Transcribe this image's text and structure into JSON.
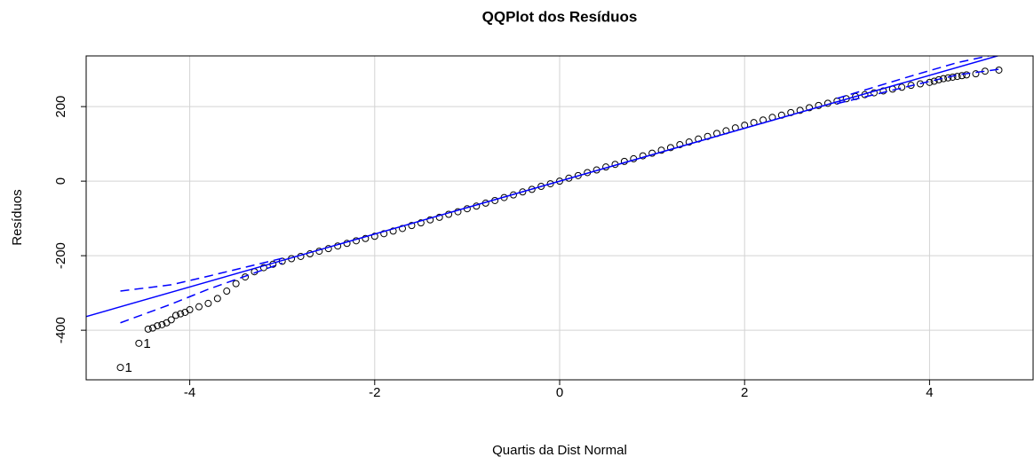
{
  "chart_data": {
    "type": "scatter",
    "title": "QQPlot dos Resíduos",
    "xlabel": "Quartis da Dist Normal",
    "ylabel": "Resíduos",
    "xlim": [
      -5.12,
      5.12
    ],
    "ylim": [
      -533,
      336
    ],
    "xticks": [
      -4,
      -2,
      0,
      2,
      4
    ],
    "yticks": [
      -400,
      -200,
      0,
      200
    ],
    "grid": true,
    "series": [
      {
        "style": "points",
        "color": "#000000",
        "x": [
          -4.75,
          -4.55,
          -4.45,
          -4.4,
          -4.35,
          -4.3,
          -4.25,
          -4.2,
          -4.15,
          -4.1,
          -4.05,
          -4.0,
          -3.9,
          -3.8,
          -3.7,
          -3.6,
          -3.5,
          -3.4,
          -3.3,
          -3.2,
          -3.1,
          -3.0,
          -2.9,
          -2.8,
          -2.7,
          -2.6,
          -2.5,
          -2.4,
          -2.3,
          -2.2,
          -2.1,
          -2.0,
          -1.9,
          -1.8,
          -1.7,
          -1.6,
          -1.5,
          -1.4,
          -1.3,
          -1.2,
          -1.1,
          -1.0,
          -0.9,
          -0.8,
          -0.7,
          -0.6,
          -0.5,
          -0.4,
          -0.3,
          -0.2,
          -0.1,
          0,
          0.1,
          0.2,
          0.3,
          0.4,
          0.5,
          0.6,
          0.7,
          0.8,
          0.9,
          1.0,
          1.1,
          1.2,
          1.3,
          1.4,
          1.5,
          1.6,
          1.7,
          1.8,
          1.9,
          2.0,
          2.1,
          2.2,
          2.3,
          2.4,
          2.5,
          2.6,
          2.7,
          2.8,
          2.9,
          3.0,
          3.1,
          3.2,
          3.3,
          3.4,
          3.5,
          3.6,
          3.7,
          3.8,
          3.9,
          4.0,
          4.05,
          4.1,
          4.15,
          4.2,
          4.25,
          4.3,
          4.35,
          4.4,
          4.5,
          4.6,
          4.75
        ],
        "values": [
          -500,
          -435,
          -397,
          -394,
          -388,
          -385,
          -380,
          -372,
          -360,
          -356,
          -352,
          -345,
          -337,
          -328,
          -315,
          -295,
          -275,
          -257,
          -243,
          -232,
          -223,
          -215,
          -208,
          -202,
          -195,
          -188,
          -181,
          -174,
          -167,
          -160,
          -154,
          -148,
          -141,
          -134,
          -127,
          -119,
          -112,
          -104,
          -97,
          -89,
          -82,
          -74,
          -67,
          -59,
          -52,
          -44,
          -37,
          -29,
          -22,
          -14,
          -7,
          0,
          8,
          15,
          23,
          30,
          38,
          45,
          53,
          60,
          68,
          75,
          83,
          90,
          98,
          105,
          113,
          120,
          128,
          135,
          143,
          150,
          157,
          164,
          171,
          177,
          184,
          190,
          197,
          203,
          209,
          215,
          221,
          227,
          232,
          237,
          242,
          247,
          252,
          257,
          261,
          265,
          268,
          272,
          275,
          277,
          279,
          281,
          283,
          285,
          288,
          295,
          298
        ]
      },
      {
        "style": "line",
        "color": "#0000ff",
        "x": [
          -5.2,
          5.2
        ],
        "values": [
          -369,
          369
        ]
      },
      {
        "style": "dashed",
        "color": "#0000ff",
        "x": [
          -4.75,
          -4.2,
          -3.8,
          -3.0
        ],
        "values": [
          -295,
          -278,
          -255,
          -207
        ]
      },
      {
        "style": "dashed",
        "color": "#0000ff",
        "x": [
          -4.75,
          -4.2,
          -3.8,
          -3.0
        ],
        "values": [
          -380,
          -330,
          -290,
          -220
        ]
      },
      {
        "style": "dashed",
        "color": "#0000ff",
        "x": [
          3.0,
          3.8,
          4.3,
          4.75
        ],
        "values": [
          222,
          282,
          318,
          342
        ]
      },
      {
        "style": "dashed",
        "color": "#0000ff",
        "x": [
          3.0,
          3.8,
          4.3,
          4.75
        ],
        "values": [
          208,
          256,
          285,
          300
        ]
      }
    ],
    "annotations": [
      {
        "text": "1",
        "x": -4.55,
        "y": -435
      },
      {
        "text": "1",
        "x": -4.75,
        "y": -500
      }
    ]
  }
}
